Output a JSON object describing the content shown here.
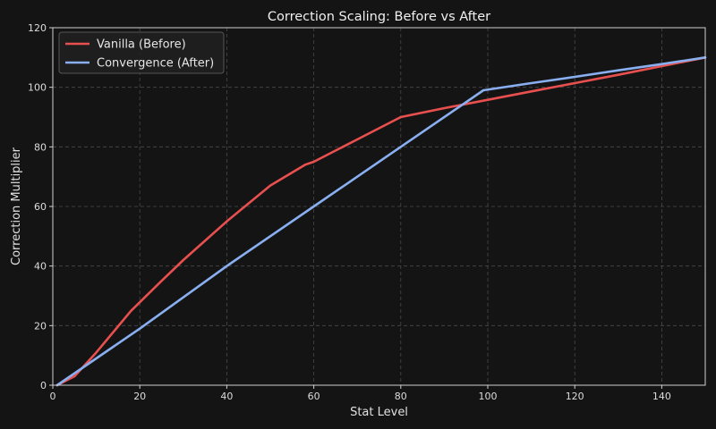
{
  "chart_data": {
    "type": "line",
    "title": "Correction Scaling: Before vs After",
    "xlabel": "Stat Level",
    "ylabel": "Correction Multiplier",
    "xlim": [
      0,
      150
    ],
    "ylim": [
      0,
      120
    ],
    "xticks": [
      0,
      20,
      40,
      60,
      80,
      100,
      120,
      140
    ],
    "yticks": [
      0,
      20,
      40,
      60,
      80,
      100,
      120
    ],
    "grid": true,
    "legend_position": "top-left",
    "series": [
      {
        "name": "Vanilla (Before)",
        "color": "#e8504f",
        "x": [
          1,
          5,
          10,
          18,
          25,
          30,
          40,
          50,
          58,
          60,
          70,
          80,
          90,
          100,
          110,
          120,
          130,
          140,
          150
        ],
        "y": [
          0,
          3,
          11,
          25,
          35,
          42,
          55,
          67,
          74,
          75,
          82.5,
          90,
          93,
          95.8,
          98.6,
          101.4,
          104.2,
          107.1,
          110
        ]
      },
      {
        "name": "Convergence (After)",
        "color": "#89aff0",
        "x": [
          1,
          10,
          20,
          40,
          60,
          80,
          99,
          110,
          120,
          130,
          140,
          150
        ],
        "y": [
          0,
          9,
          19,
          40,
          60,
          80,
          99,
          101.4,
          103.5,
          105.7,
          107.8,
          110
        ]
      }
    ]
  }
}
